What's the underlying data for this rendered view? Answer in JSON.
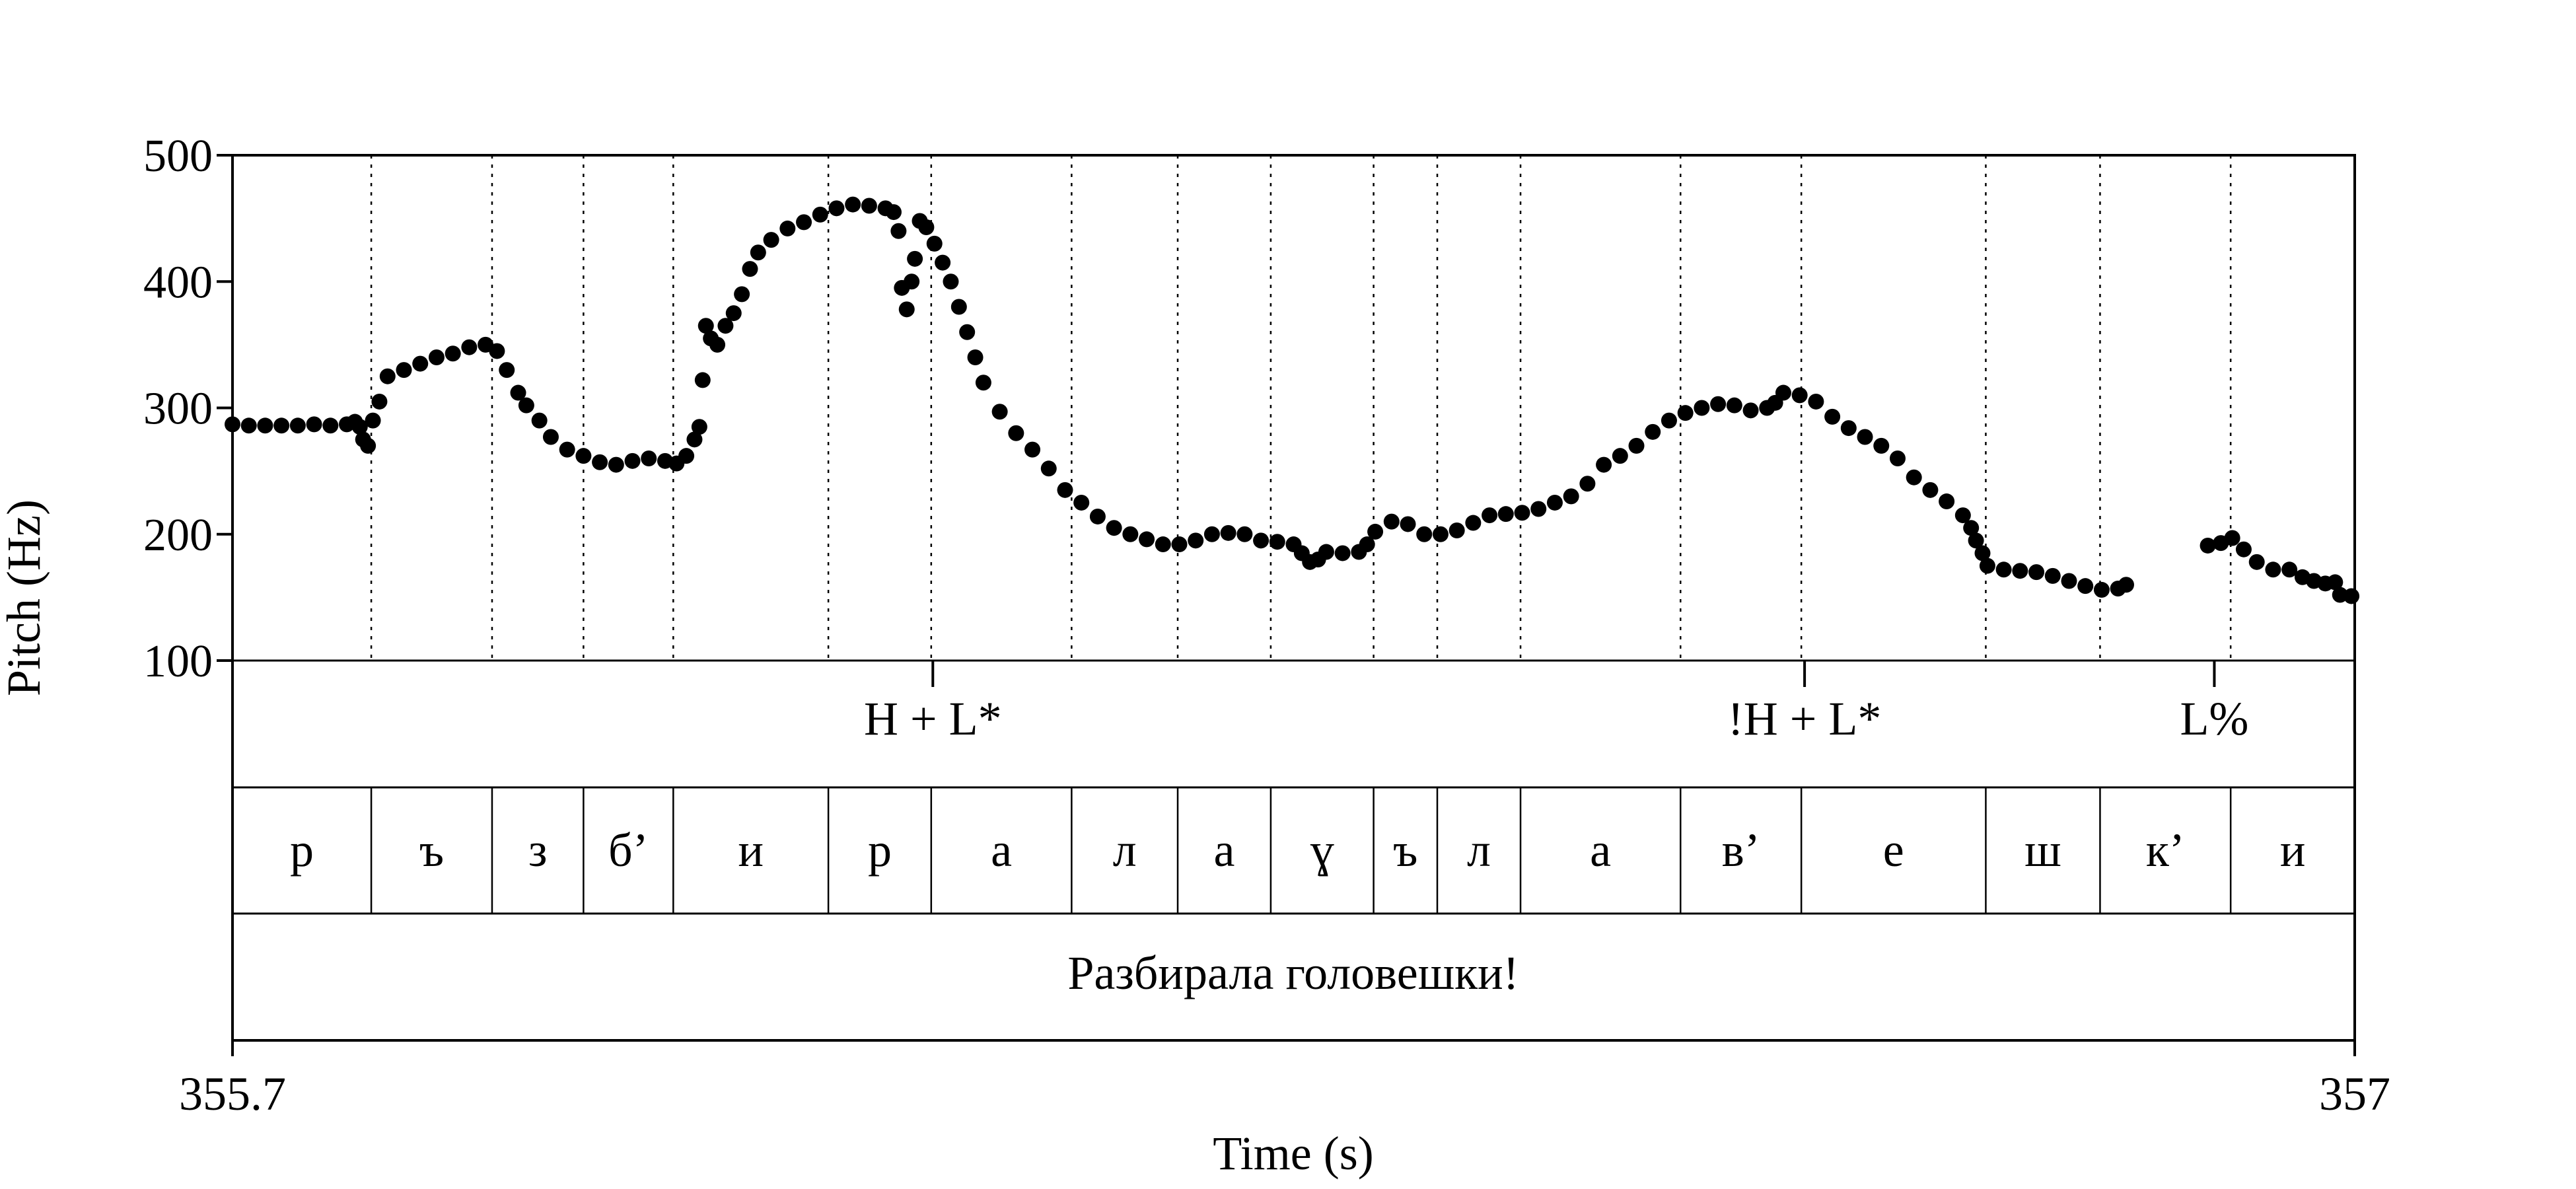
{
  "chart_data": {
    "type": "scatter",
    "title": "",
    "ylabel": "Pitch (Hz)",
    "xlabel": "Time (s)",
    "xlim": [
      355.7,
      357
    ],
    "ylim": [
      100,
      500
    ],
    "yticks": [
      100,
      200,
      300,
      400,
      500
    ],
    "xtick_labels": [
      "355.7",
      "357"
    ],
    "tone_labels": [
      {
        "text": "H + L*",
        "t": 356.129
      },
      {
        "text": "!H + L*",
        "t": 356.663
      },
      {
        "text": "L%",
        "t": 356.914
      }
    ],
    "segments": [
      {
        "label": "р",
        "start": 355.7,
        "end": 355.785
      },
      {
        "label": "ъ",
        "start": 355.785,
        "end": 355.859
      },
      {
        "label": "з",
        "start": 355.859,
        "end": 355.915
      },
      {
        "label": "б’",
        "start": 355.915,
        "end": 355.97
      },
      {
        "label": "и",
        "start": 355.97,
        "end": 356.065
      },
      {
        "label": "р",
        "start": 356.065,
        "end": 356.128
      },
      {
        "label": "а",
        "start": 356.128,
        "end": 356.214
      },
      {
        "label": "л",
        "start": 356.214,
        "end": 356.279
      },
      {
        "label": "а",
        "start": 356.279,
        "end": 356.336
      },
      {
        "label": "ɣ",
        "start": 356.336,
        "end": 356.399
      },
      {
        "label": "ъ",
        "start": 356.399,
        "end": 356.438
      },
      {
        "label": "л",
        "start": 356.438,
        "end": 356.489
      },
      {
        "label": "а",
        "start": 356.489,
        "end": 356.587
      },
      {
        "label": "в’",
        "start": 356.587,
        "end": 356.661
      },
      {
        "label": "е",
        "start": 356.661,
        "end": 356.774
      },
      {
        "label": "ш",
        "start": 356.774,
        "end": 356.844
      },
      {
        "label": "к’",
        "start": 356.844,
        "end": 356.924
      },
      {
        "label": "и",
        "start": 356.924,
        "end": 357.0
      }
    ],
    "sentence": "Разбирала головешки!",
    "pitch_track": [
      [
        355.7,
        287
      ],
      [
        355.71,
        286
      ],
      [
        355.72,
        286
      ],
      [
        355.73,
        286
      ],
      [
        355.74,
        286
      ],
      [
        355.75,
        287
      ],
      [
        355.76,
        286
      ],
      [
        355.77,
        287
      ],
      [
        355.775,
        289
      ],
      [
        355.778,
        285
      ],
      [
        355.78,
        275
      ],
      [
        355.783,
        270
      ],
      [
        355.786,
        290
      ],
      [
        355.79,
        305
      ],
      [
        355.795,
        325
      ],
      [
        355.805,
        330
      ],
      [
        355.815,
        335
      ],
      [
        355.825,
        340
      ],
      [
        355.835,
        343
      ],
      [
        355.845,
        348
      ],
      [
        355.855,
        350
      ],
      [
        355.862,
        345
      ],
      [
        355.868,
        330
      ],
      [
        355.875,
        312
      ],
      [
        355.88,
        302
      ],
      [
        355.888,
        290
      ],
      [
        355.895,
        277
      ],
      [
        355.905,
        267
      ],
      [
        355.915,
        262
      ],
      [
        355.925,
        257
      ],
      [
        355.935,
        255
      ],
      [
        355.945,
        258
      ],
      [
        355.955,
        260
      ],
      [
        355.965,
        258
      ],
      [
        355.972,
        256
      ],
      [
        355.978,
        262
      ],
      [
        355.983,
        275
      ],
      [
        355.986,
        285
      ],
      [
        355.988,
        322
      ],
      [
        355.99,
        365
      ],
      [
        355.993,
        355
      ],
      [
        355.997,
        350
      ],
      [
        356.002,
        365
      ],
      [
        356.007,
        375
      ],
      [
        356.012,
        390
      ],
      [
        356.017,
        410
      ],
      [
        356.022,
        423
      ],
      [
        356.03,
        433
      ],
      [
        356.04,
        442
      ],
      [
        356.05,
        447
      ],
      [
        356.06,
        453
      ],
      [
        356.07,
        458
      ],
      [
        356.08,
        461
      ],
      [
        356.09,
        460
      ],
      [
        356.1,
        458
      ],
      [
        356.105,
        455
      ],
      [
        356.108,
        440
      ],
      [
        356.11,
        395
      ],
      [
        356.113,
        378
      ],
      [
        356.116,
        400
      ],
      [
        356.118,
        418
      ],
      [
        356.121,
        448
      ],
      [
        356.125,
        443
      ],
      [
        356.13,
        430
      ],
      [
        356.135,
        415
      ],
      [
        356.14,
        400
      ],
      [
        356.145,
        380
      ],
      [
        356.15,
        360
      ],
      [
        356.155,
        340
      ],
      [
        356.16,
        320
      ],
      [
        356.17,
        297
      ],
      [
        356.18,
        280
      ],
      [
        356.19,
        267
      ],
      [
        356.2,
        252
      ],
      [
        356.21,
        235
      ],
      [
        356.22,
        225
      ],
      [
        356.23,
        214
      ],
      [
        356.24,
        205
      ],
      [
        356.25,
        200
      ],
      [
        356.26,
        196
      ],
      [
        356.27,
        192
      ],
      [
        356.28,
        192
      ],
      [
        356.29,
        195
      ],
      [
        356.3,
        200
      ],
      [
        356.31,
        201
      ],
      [
        356.32,
        200
      ],
      [
        356.33,
        195
      ],
      [
        356.34,
        194
      ],
      [
        356.35,
        192
      ],
      [
        356.355,
        185
      ],
      [
        356.36,
        178
      ],
      [
        356.365,
        180
      ],
      [
        356.37,
        186
      ],
      [
        356.38,
        185
      ],
      [
        356.39,
        186
      ],
      [
        356.395,
        192
      ],
      [
        356.4,
        202
      ],
      [
        356.41,
        210
      ],
      [
        356.42,
        208
      ],
      [
        356.43,
        200
      ],
      [
        356.44,
        200
      ],
      [
        356.45,
        203
      ],
      [
        356.46,
        209
      ],
      [
        356.47,
        215
      ],
      [
        356.48,
        216
      ],
      [
        356.49,
        217
      ],
      [
        356.5,
        220
      ],
      [
        356.51,
        225
      ],
      [
        356.52,
        230
      ],
      [
        356.53,
        240
      ],
      [
        356.54,
        255
      ],
      [
        356.55,
        262
      ],
      [
        356.56,
        270
      ],
      [
        356.57,
        281
      ],
      [
        356.58,
        290
      ],
      [
        356.59,
        296
      ],
      [
        356.6,
        300
      ],
      [
        356.61,
        303
      ],
      [
        356.62,
        302
      ],
      [
        356.63,
        298
      ],
      [
        356.64,
        300
      ],
      [
        356.645,
        304
      ],
      [
        356.65,
        312
      ],
      [
        356.66,
        310
      ],
      [
        356.67,
        305
      ],
      [
        356.68,
        293
      ],
      [
        356.69,
        284
      ],
      [
        356.7,
        277
      ],
      [
        356.71,
        270
      ],
      [
        356.72,
        260
      ],
      [
        356.73,
        245
      ],
      [
        356.74,
        235
      ],
      [
        356.75,
        226
      ],
      [
        356.76,
        215
      ],
      [
        356.765,
        205
      ],
      [
        356.768,
        195
      ],
      [
        356.772,
        185
      ],
      [
        356.775,
        175
      ],
      [
        356.785,
        172
      ],
      [
        356.795,
        171
      ],
      [
        356.805,
        170
      ],
      [
        356.815,
        167
      ],
      [
        356.825,
        163
      ],
      [
        356.835,
        159
      ],
      [
        356.845,
        156
      ],
      [
        356.855,
        157
      ],
      [
        356.86,
        160
      ],
      [
        356.91,
        191
      ],
      [
        356.918,
        193
      ],
      [
        356.925,
        197
      ],
      [
        356.932,
        188
      ],
      [
        356.94,
        178
      ],
      [
        356.95,
        172
      ],
      [
        356.96,
        172
      ],
      [
        356.968,
        166
      ],
      [
        356.975,
        163
      ],
      [
        356.982,
        161
      ],
      [
        356.988,
        162
      ],
      [
        356.991,
        152
      ],
      [
        356.998,
        151
      ]
    ]
  }
}
